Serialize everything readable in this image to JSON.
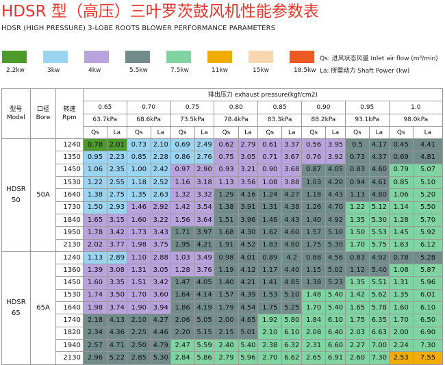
{
  "header": {
    "title": "HDSR 型（高压）三叶罗茨鼓风机性能参数表",
    "subtitle": "HDSR (HIGH PRESSURE) 3-LOBE ROOTS BLOWER PERFORMANCE PARAMETERS"
  },
  "legend": [
    {
      "label": "2.2kw",
      "color": "#4c9a2a"
    },
    {
      "label": "3kw",
      "color": "#9bd4f1"
    },
    {
      "label": "4kw",
      "color": "#b8a3dc"
    },
    {
      "label": "5.5kw",
      "color": "#728c8c"
    },
    {
      "label": "7.5kw",
      "color": "#7fd4a2"
    },
    {
      "label": "11kw",
      "color": "#f0ad00"
    },
    {
      "label": "15kw",
      "color": "#f7d6b0"
    },
    {
      "label": "18.5kw",
      "color": "#ee5a24"
    }
  ],
  "notes": {
    "qs": "Qs: 进风状态风量 Inlet air flow (m³/min)",
    "la": "La: 所需动力 Shaft Power (kw)"
  },
  "table": {
    "model_zh": "型号",
    "model_en": "Model",
    "bore_zh": "口径",
    "bore_en": "Bore",
    "speed_zh": "转速",
    "speed_en": "Rpm",
    "pressure_title": "排出压力 exhaust pressure(kgf/cm2)",
    "pressures_kgf": [
      "0.65",
      "0.70",
      "0.75",
      "0.80",
      "0.85",
      "0.90",
      "0.95",
      "1.0"
    ],
    "pressures_kpa": [
      "63.7kPa",
      "68.6kPa",
      "73.5kPa",
      "78.4kPa",
      "83.3kPa",
      "88.2kPa",
      "93.1kPa",
      "98.0kPa"
    ],
    "qs": "Qs",
    "la": "La",
    "groups": [
      {
        "model_line1": "HDSR",
        "model_line2": "50",
        "bore": "50A",
        "rows": [
          {
            "rpm": "1240",
            "cells": [
              [
                "0.78",
                "2.01",
                1
              ],
              [
                "0.73",
                "2.10",
                2
              ],
              [
                "0.69",
                "2.49",
                2
              ],
              [
                "0.62",
                "2.79",
                3
              ],
              [
                "0.61",
                "3.37",
                3
              ],
              [
                "0.56",
                "3.95",
                3
              ],
              [
                "0.5",
                "4.17",
                4
              ],
              [
                "0.45",
                "4.41",
                4
              ]
            ]
          },
          {
            "rpm": "1350",
            "cells": [
              [
                "0.95",
                "2.23",
                2
              ],
              [
                "0.85",
                "2.28",
                2
              ],
              [
                "0.86",
                "2.76",
                2
              ],
              [
                "0.75",
                "3.05",
                3
              ],
              [
                "0.71",
                "3.67",
                3
              ],
              [
                "0.76",
                "3.92",
                3
              ],
              [
                "0.73",
                "4.37",
                4
              ],
              [
                "0.69",
                "4.81",
                4
              ]
            ]
          },
          {
            "rpm": "1450",
            "cells": [
              [
                "1.06",
                "2.35",
                2
              ],
              [
                "1.00",
                "2.42",
                2
              ],
              [
                "0.97",
                "2.90",
                3
              ],
              [
                "0.93",
                "3.21",
                3
              ],
              [
                "0.90",
                "3.68",
                3
              ],
              [
                "0.87",
                "4.05",
                4
              ],
              [
                "0.83",
                "4.60",
                4
              ],
              [
                "0.79",
                "5.07",
                5
              ]
            ]
          },
          {
            "rpm": "1530",
            "cells": [
              [
                "1.22",
                "2.55",
                2
              ],
              [
                "1.18",
                "2.52",
                2
              ],
              [
                "1.16",
                "3.18",
                3
              ],
              [
                "1.13",
                "3.56",
                3
              ],
              [
                "1.08",
                "3.88",
                3
              ],
              [
                "1.03",
                "4.20",
                4
              ],
              [
                "0.94",
                "4.61",
                4
              ],
              [
                "0.85",
                "5.10",
                5
              ]
            ]
          },
          {
            "rpm": "1640",
            "cells": [
              [
                "1.38",
                "2.75",
                2
              ],
              [
                "1.35",
                "2.63",
                2
              ],
              [
                "1.32",
                "3.32",
                3
              ],
              [
                "1.29",
                "4.16",
                4
              ],
              [
                "1.24",
                "4.27",
                4
              ],
              [
                "1.18",
                "4.43",
                4
              ],
              [
                "1.13",
                "4.80",
                4
              ],
              [
                "1.06",
                "5.20",
                5
              ]
            ]
          },
          {
            "rpm": "1730",
            "cells": [
              [
                "1.50",
                "2.93",
                2
              ],
              [
                "1.46",
                "2.92",
                3
              ],
              [
                "1.42",
                "3.54",
                3
              ],
              [
                "1.38",
                "3.91",
                4
              ],
              [
                "1.31",
                "4.38",
                4
              ],
              [
                "1.26",
                "4.70",
                4
              ],
              [
                "1.22",
                "5.12",
                5
              ],
              [
                "1.14",
                "5.50",
                5
              ]
            ]
          },
          {
            "rpm": "1840",
            "cells": [
              [
                "1.65",
                "3.15",
                3
              ],
              [
                "1.60",
                "3.22",
                3
              ],
              [
                "1.56",
                "3.64",
                3
              ],
              [
                "1.51",
                "3.96",
                4
              ],
              [
                "1.46",
                "4.43",
                4
              ],
              [
                "1.40",
                "4.92",
                4
              ],
              [
                "1.35",
                "5.30",
                5
              ],
              [
                "1.28",
                "5.70",
                5
              ]
            ]
          },
          {
            "rpm": "1950",
            "cells": [
              [
                "1.78",
                "3.42",
                3
              ],
              [
                "1.73",
                "3.43",
                3
              ],
              [
                "1.71",
                "3.97",
                4
              ],
              [
                "1.68",
                "4.30",
                4
              ],
              [
                "1.62",
                "4.60",
                4
              ],
              [
                "1.57",
                "5.10",
                4
              ],
              [
                "1.50",
                "5.53",
                5
              ],
              [
                "1.45",
                "5.92",
                5
              ]
            ]
          },
          {
            "rpm": "2130",
            "cells": [
              [
                "2.02",
                "3.77",
                3
              ],
              [
                "1.98",
                "3.75",
                3
              ],
              [
                "1.95",
                "4.21",
                4
              ],
              [
                "1.91",
                "4.52",
                4
              ],
              [
                "1.83",
                "4.80",
                4
              ],
              [
                "1.75",
                "5.30",
                4
              ],
              [
                "1.70",
                "5.75",
                5
              ],
              [
                "1.63",
                "6.12",
                5
              ]
            ]
          }
        ]
      },
      {
        "model_line1": "HDSR",
        "model_line2": "65",
        "bore": "65A",
        "rows": [
          {
            "rpm": "1240",
            "cells": [
              [
                "1.13",
                "2.89",
                2
              ],
              [
                "1.10",
                "2.88",
                3
              ],
              [
                "1.03",
                "3.49",
                3
              ],
              [
                "0.98",
                "4.01",
                4
              ],
              [
                "0.89",
                "4.2",
                4
              ],
              [
                "0.88",
                "4.56",
                4
              ],
              [
                "0.83",
                "4.92",
                4
              ],
              [
                "0.78",
                "5.28",
                4
              ]
            ]
          },
          {
            "rpm": "1360",
            "cells": [
              [
                "1.39",
                "3.08",
                3
              ],
              [
                "1.31",
                "3.05",
                3
              ],
              [
                "1.28",
                "3.76",
                3
              ],
              [
                "1.19",
                "4.12",
                4
              ],
              [
                "1.17",
                "4.40",
                4
              ],
              [
                "1.15",
                "5.02",
                4
              ],
              [
                "1.12",
                "5.40",
                4
              ],
              [
                "1.08",
                "5.87",
                5
              ]
            ]
          },
          {
            "rpm": "1450",
            "cells": [
              [
                "1.60",
                "3.35",
                3
              ],
              [
                "1.51",
                "3.42",
                3
              ],
              [
                "1.47",
                "4.05",
                4
              ],
              [
                "1.40",
                "4.21",
                4
              ],
              [
                "1.41",
                "4.85",
                4
              ],
              [
                "1.38",
                "5.23",
                4
              ],
              [
                "1.35",
                "5.51",
                5
              ],
              [
                "1.31",
                "5.96",
                5
              ]
            ]
          },
          {
            "rpm": "1530",
            "cells": [
              [
                "1.74",
                "3.50",
                3
              ],
              [
                "1.70",
                "3.60",
                3
              ],
              [
                "1.64",
                "4.14",
                4
              ],
              [
                "1.57",
                "4.39",
                4
              ],
              [
                "1.53",
                "5.10",
                4
              ],
              [
                "1.48",
                "5.40",
                5
              ],
              [
                "1.42",
                "5.62",
                5
              ],
              [
                "1.35",
                "6.01",
                5
              ]
            ]
          },
          {
            "rpm": "1640",
            "cells": [
              [
                "1.98",
                "3.74",
                3
              ],
              [
                "1.90",
                "3.94",
                3
              ],
              [
                "1.86",
                "4.19",
                4
              ],
              [
                "1.79",
                "4.54",
                4
              ],
              [
                "1.75",
                "5.25",
                4
              ],
              [
                "1.70",
                "5.40",
                5
              ],
              [
                "1.65",
                "5.78",
                5
              ],
              [
                "1.60",
                "6.10",
                5
              ]
            ]
          },
          {
            "rpm": "1740",
            "cells": [
              [
                "2.18",
                "4.13",
                4
              ],
              [
                "2.10",
                "4.27",
                4
              ],
              [
                "2.06",
                "5.05",
                4
              ],
              [
                "2.00",
                "4.65",
                4
              ],
              [
                "1.92",
                "5.80",
                5
              ],
              [
                "1.84",
                "6.10",
                5
              ],
              [
                "1.75",
                "6.35",
                5
              ],
              [
                "1.70",
                "6.50",
                5
              ]
            ]
          },
          {
            "rpm": "1820",
            "cells": [
              [
                "2.34",
                "4.36",
                4
              ],
              [
                "2.25",
                "4.46",
                4
              ],
              [
                "2.20",
                "5.15",
                4
              ],
              [
                "2.15",
                "5.01",
                4
              ],
              [
                "2.10",
                "6.10",
                5
              ],
              [
                "2.08",
                "6.40",
                5
              ],
              [
                "2.03",
                "6.63",
                5
              ],
              [
                "2.00",
                "6.90",
                5
              ]
            ]
          },
          {
            "rpm": "1940",
            "cells": [
              [
                "2.57",
                "4.71",
                4
              ],
              [
                "2.50",
                "4.79",
                4
              ],
              [
                "2.47",
                "5.59",
                5
              ],
              [
                "2.40",
                "5.40",
                5
              ],
              [
                "2.38",
                "6.32",
                5
              ],
              [
                "2.31",
                "6.60",
                5
              ],
              [
                "2.27",
                "7.00",
                5
              ],
              [
                "2.24",
                "7.30",
                5
              ]
            ]
          },
          {
            "rpm": "2130",
            "cells": [
              [
                "2.96",
                "5.22",
                4
              ],
              [
                "2.85",
                "5.30",
                4
              ],
              [
                "2.84",
                "5.86",
                5
              ],
              [
                "2.79",
                "5.96",
                5
              ],
              [
                "2.70",
                "6.62",
                5
              ],
              [
                "2.65",
                "6.91",
                5
              ],
              [
                "2.60",
                "7.30",
                5
              ],
              [
                "2.53",
                "7.55",
                6
              ]
            ]
          }
        ]
      }
    ]
  }
}
